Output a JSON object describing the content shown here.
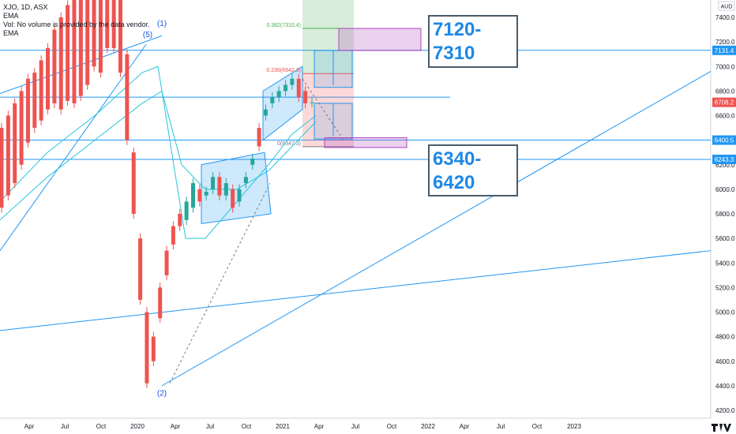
{
  "header": {
    "symbol": "XJO, 1D, ASX",
    "lines": [
      "EMA",
      "Vol: No volume is provided by the data vendor.",
      "EMA"
    ]
  },
  "chart_data": {
    "type": "candlestick",
    "currency": "AUD",
    "y_ticks": [
      4200,
      4400,
      4600,
      4800,
      5000,
      5200,
      5400,
      5600,
      5800,
      6000,
      6200,
      6400,
      6600,
      6800,
      7000,
      7200,
      7400
    ],
    "x_ticks": [
      "Apr",
      "Jul",
      "Oct",
      "2020",
      "Apr",
      "Jul",
      "Oct",
      "2021",
      "Apr",
      "Jul",
      "Oct",
      "2022",
      "Apr",
      "Jul",
      "Oct",
      "2023"
    ],
    "price_labels": [
      {
        "text": "7131.4",
        "value": 7131.4,
        "color": "#2196f3"
      },
      {
        "text": "6708.2",
        "value": 6708.2,
        "color": "#ef5350"
      },
      {
        "text": "6400.5",
        "value": 6400.5,
        "color": "#2196f3"
      },
      {
        "text": "6243.3",
        "value": 6243.3,
        "color": "#2196f3"
      }
    ],
    "fib_labels": [
      "0.382(7310.4)",
      "0.236(6942.3)",
      "0(6347.3)"
    ],
    "wave_labels": [
      "(5)",
      "(1)",
      "(2)"
    ],
    "annotations": [
      {
        "lines": [
          "7120-",
          "7310"
        ]
      },
      {
        "lines": [
          "6340-",
          "6420"
        ]
      }
    ],
    "price_path": [
      [
        6500,
        5850
      ],
      [
        6600,
        5950
      ],
      [
        6700,
        6050
      ],
      [
        6800,
        6200
      ],
      [
        6900,
        6380
      ],
      [
        6950,
        6500
      ],
      [
        7050,
        6560
      ],
      [
        7150,
        6650
      ],
      [
        7300,
        6700
      ],
      [
        7400,
        6650
      ],
      [
        7500,
        6720
      ],
      [
        7650,
        6700
      ],
      [
        7700,
        6760
      ],
      [
        7800,
        6850
      ],
      [
        7900,
        7000
      ],
      [
        7950,
        6950
      ],
      [
        8000,
        7150
      ],
      [
        8050,
        7150
      ],
      [
        8000,
        6950
      ],
      [
        7100,
        6400
      ],
      [
        6300,
        5800
      ],
      [
        5600,
        5100
      ],
      [
        5000,
        4420
      ],
      [
        4800,
        4600
      ],
      [
        5200,
        4950
      ],
      [
        5500,
        5300
      ],
      [
        5700,
        5550
      ],
      [
        5800,
        5700
      ],
      [
        5750,
        5900
      ],
      [
        5850,
        6050
      ],
      [
        6000,
        5900
      ],
      [
        5950,
        5980
      ],
      [
        6000,
        6100
      ],
      [
        6100,
        5950
      ],
      [
        5950,
        6050
      ],
      [
        6000,
        5850
      ],
      [
        5900,
        6000
      ],
      [
        6050,
        6100
      ],
      [
        6200,
        6250
      ],
      [
        6500,
        6350
      ],
      [
        6600,
        6650
      ],
      [
        6700,
        6750
      ],
      [
        6750,
        6800
      ],
      [
        6800,
        6850
      ],
      [
        6850,
        6900
      ],
      [
        6900,
        6750
      ],
      [
        6800,
        6700
      ],
      [
        6708,
        6708
      ]
    ]
  }
}
